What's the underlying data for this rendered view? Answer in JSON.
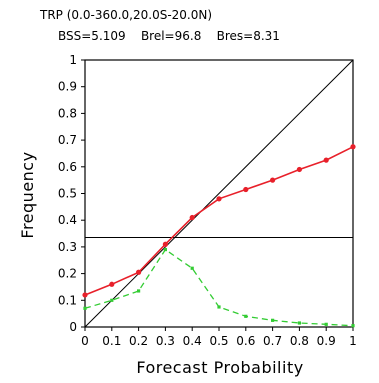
{
  "chart_data": {
    "type": "line",
    "title": "TRP (0.0-360.0,20.0S-20.0N)",
    "subtitle": {
      "bss": "BSS=5.109",
      "brel": "Brel=96.8",
      "bres": "Bres=8.31"
    },
    "xlabel": "Forecast Probability",
    "ylabel": "Frequency",
    "xlim": [
      0,
      1
    ],
    "ylim": [
      0,
      1
    ],
    "x_ticks": [
      "0",
      "0.1",
      "0.2",
      "0.3",
      "0.4",
      "0.5",
      "0.6",
      "0.7",
      "0.8",
      "0.9",
      "1"
    ],
    "y_ticks": [
      "0",
      "0.1",
      "0.2",
      "0.3",
      "0.4",
      "0.5",
      "0.6",
      "0.7",
      "0.8",
      "0.9",
      "1"
    ],
    "climatology": 0.335,
    "series": [
      {
        "color": "#e8202a",
        "style": "solid-markers",
        "x": [
          0.0,
          0.1,
          0.2,
          0.3,
          0.4,
          0.5,
          0.6,
          0.7,
          0.8,
          0.9,
          1.0
        ],
        "values": [
          0.12,
          0.16,
          0.205,
          0.31,
          0.41,
          0.48,
          0.515,
          0.55,
          0.59,
          0.625,
          0.675
        ]
      },
      {
        "color": "#33cc33",
        "style": "dashed-markers",
        "x": [
          0.0,
          0.1,
          0.2,
          0.3,
          0.4,
          0.5,
          0.6,
          0.7,
          0.8,
          0.9,
          1.0
        ],
        "values": [
          0.07,
          0.1,
          0.135,
          0.29,
          0.22,
          0.075,
          0.04,
          0.025,
          0.015,
          0.01,
          0.005
        ]
      }
    ],
    "reference_lines": [
      "diagonal",
      "climatology-horizontal"
    ],
    "grid": false
  }
}
